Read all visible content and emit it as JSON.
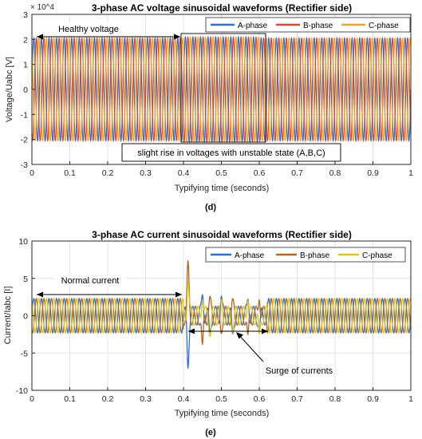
{
  "chart_data": [
    {
      "type": "line",
      "title": "3-phase AC voltage sinusoidal waveforms (Rectifier side)",
      "xlabel": "Typifying time (seconds)",
      "ylabel": "Voltage/Uabc [V]",
      "y_exponent_label": "× 10^4",
      "panel_label": "(d)",
      "xlim": [
        0,
        1
      ],
      "ylim": [
        -3,
        3
      ],
      "x_ticks": [
        0,
        0.1,
        0.2,
        0.3,
        0.4,
        0.5,
        0.6,
        0.7,
        0.8,
        0.9,
        1
      ],
      "x_tick_labels": [
        "0",
        "0.1",
        "0.2",
        "0.3",
        "0.4",
        "0.5",
        "0.6",
        "0.7",
        "0.8",
        "0.9",
        "1"
      ],
      "y_ticks": [
        -3,
        -2,
        -1,
        0,
        1,
        2,
        3
      ],
      "y_tick_labels": [
        "-3",
        "-2",
        "-1",
        "0",
        "1",
        "2",
        "3"
      ],
      "grid": true,
      "legend_position": "top-right",
      "frequency_hz": 50,
      "series": [
        {
          "name": "A-phase",
          "color": "#2f6fd1",
          "amplitude": 2.05,
          "phase_deg": 0
        },
        {
          "name": "B-phase",
          "color": "#e0452a",
          "amplitude": 2.05,
          "phase_deg": -120
        },
        {
          "name": "C-phase",
          "color": "#f3a51c",
          "amplitude": 2.05,
          "phase_deg": 120
        }
      ],
      "disturbance": {
        "x_start": 0.4,
        "x_end": 0.6,
        "amplitude_scale": 1.02
      },
      "annotations": [
        {
          "text": "Healthy voltage",
          "arrow_x": [
            0,
            0.4
          ],
          "arrow_y": 2.1
        },
        {
          "text": "slight rise in voltages with unstable state (A,B,C)",
          "box_x": [
            0.39,
            0.61
          ],
          "box_y": [
            -2.3,
            2.3
          ]
        }
      ]
    },
    {
      "type": "line",
      "title": "3-phase AC current sinusoidal waveforms (Rectifier side)",
      "xlabel": "Typifying time (seconds)",
      "ylabel": "Current/Iabc [I]",
      "panel_label": "(e)",
      "xlim": [
        0,
        1
      ],
      "ylim": [
        -10,
        10
      ],
      "x_ticks": [
        0,
        0.1,
        0.2,
        0.3,
        0.4,
        0.5,
        0.6,
        0.7,
        0.8,
        0.9,
        1
      ],
      "x_tick_labels": [
        "0",
        "0.1",
        "0.2",
        "0.3",
        "0.4",
        "0.5",
        "0.6",
        "0.7",
        "0.8",
        "0.9",
        "1"
      ],
      "y_ticks": [
        -10,
        -5,
        0,
        5,
        10
      ],
      "y_tick_labels": [
        "-10",
        "-5",
        "0",
        "5",
        "10"
      ],
      "grid": true,
      "legend_position": "top-right",
      "frequency_hz": 50,
      "series": [
        {
          "name": "A-phase",
          "color": "#2f6fd1",
          "amplitude": 2.3,
          "phase_deg": 0
        },
        {
          "name": "B-phase",
          "color": "#b5651d",
          "amplitude": 2.3,
          "phase_deg": -120
        },
        {
          "name": "C-phase",
          "color": "#e0c21a",
          "amplitude": 2.3,
          "phase_deg": 120
        }
      ],
      "disturbance": {
        "x_start": 0.4,
        "x_end": 0.62,
        "spikes": [
          {
            "x": 0.412,
            "A": -7.0,
            "B": 7.3,
            "C": 4.5
          },
          {
            "x": 0.45,
            "A": 2.8,
            "B": -3.8,
            "C": 2.0
          },
          {
            "x": 0.47,
            "A": -2.2,
            "B": 2.6,
            "C": -2.8
          },
          {
            "x": 0.5,
            "A": 2.6,
            "B": -2.4,
            "C": 2.2
          },
          {
            "x": 0.53,
            "A": -2.4,
            "B": 2.3,
            "C": -2.2
          },
          {
            "x": 0.57,
            "A": 2.2,
            "B": -2.5,
            "C": 2.0
          },
          {
            "x": 0.6,
            "A": -2.0,
            "B": 2.1,
            "C": -2.4
          }
        ]
      },
      "annotations": [
        {
          "text": "Normal current",
          "arrow_x": [
            0,
            0.4
          ],
          "arrow_y": 2.3
        },
        {
          "text": "Surge of currents",
          "arrow_x": [
            0.41,
            0.62
          ],
          "arrow_y": -2.1
        }
      ]
    }
  ]
}
